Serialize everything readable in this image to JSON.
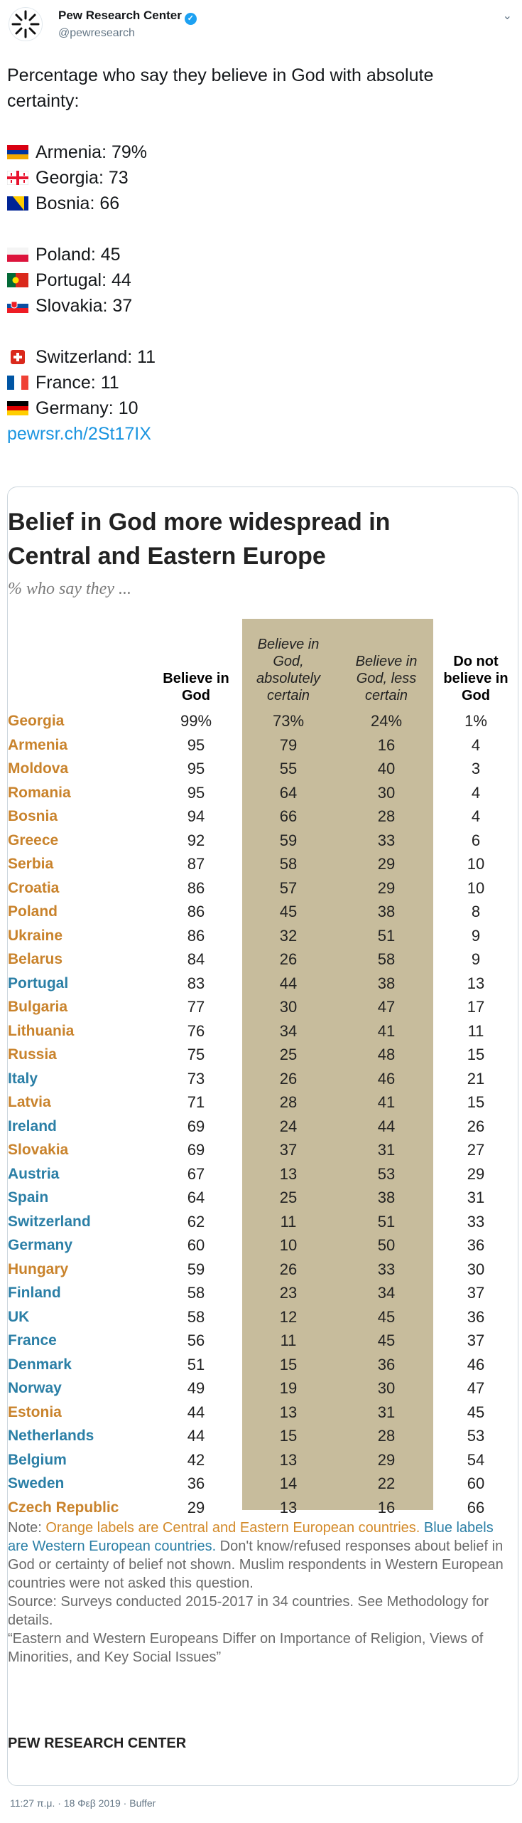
{
  "header": {
    "account_name": "Pew Research Center",
    "handle": "@pewresearch",
    "verified_icon": "verified-badge-icon",
    "menu_icon": "chevron-down-icon"
  },
  "tweet": {
    "intro": "Percentage who say they believe in God with absolute certainty:",
    "group1": [
      "Armenia: 79%",
      "Georgia: 73",
      "Bosnia: 66"
    ],
    "group2": [
      "Poland: 45",
      "Portugal: 44",
      "Slovakia: 37"
    ],
    "group3": [
      "Switzerland: 11",
      "France: 11",
      "Germany: 10"
    ],
    "link": "pewrsr.ch/2St17IX"
  },
  "card": {
    "title_line1": "Belief in God more widespread in",
    "title_line2": "Central and Eastern Europe",
    "subtitle": "% who say they ...",
    "col_headers": [
      "Believe in God",
      "Believe in God, absolutely certain",
      "Believe in God, less certain",
      "Do not believe in God"
    ],
    "shade_color": "#c7bc9c",
    "east_color": "#c9832c",
    "west_color": "#2b7fa6"
  },
  "chart_data": {
    "type": "table",
    "title": "Belief in God more widespread in Central and Eastern Europe",
    "subtitle": "% who say they ...",
    "columns": [
      "Believe in God",
      "Believe in God, absolutely certain",
      "Believe in God, less certain",
      "Do not believe in God"
    ],
    "rows": [
      {
        "country": "Georgia",
        "region": "east",
        "values": [
          "99%",
          "73%",
          "24%",
          "1%"
        ]
      },
      {
        "country": "Armenia",
        "region": "east",
        "values": [
          "95",
          "79",
          "16",
          "4"
        ]
      },
      {
        "country": "Moldova",
        "region": "east",
        "values": [
          "95",
          "55",
          "40",
          "3"
        ]
      },
      {
        "country": "Romania",
        "region": "east",
        "values": [
          "95",
          "64",
          "30",
          "4"
        ]
      },
      {
        "country": "Bosnia",
        "region": "east",
        "values": [
          "94",
          "66",
          "28",
          "4"
        ]
      },
      {
        "country": "Greece",
        "region": "east",
        "values": [
          "92",
          "59",
          "33",
          "6"
        ]
      },
      {
        "country": "Serbia",
        "region": "east",
        "values": [
          "87",
          "58",
          "29",
          "10"
        ]
      },
      {
        "country": "Croatia",
        "region": "east",
        "values": [
          "86",
          "57",
          "29",
          "10"
        ]
      },
      {
        "country": "Poland",
        "region": "east",
        "values": [
          "86",
          "45",
          "38",
          "8"
        ]
      },
      {
        "country": "Ukraine",
        "region": "east",
        "values": [
          "86",
          "32",
          "51",
          "9"
        ]
      },
      {
        "country": "Belarus",
        "region": "east",
        "values": [
          "84",
          "26",
          "58",
          "9"
        ]
      },
      {
        "country": "Portugal",
        "region": "west",
        "values": [
          "83",
          "44",
          "38",
          "13"
        ]
      },
      {
        "country": "Bulgaria",
        "region": "east",
        "values": [
          "77",
          "30",
          "47",
          "17"
        ]
      },
      {
        "country": "Lithuania",
        "region": "east",
        "values": [
          "76",
          "34",
          "41",
          "11"
        ]
      },
      {
        "country": "Russia",
        "region": "east",
        "values": [
          "75",
          "25",
          "48",
          "15"
        ]
      },
      {
        "country": "Italy",
        "region": "west",
        "values": [
          "73",
          "26",
          "46",
          "21"
        ]
      },
      {
        "country": "Latvia",
        "region": "east",
        "values": [
          "71",
          "28",
          "41",
          "15"
        ]
      },
      {
        "country": "Ireland",
        "region": "west",
        "values": [
          "69",
          "24",
          "44",
          "26"
        ]
      },
      {
        "country": "Slovakia",
        "region": "east",
        "values": [
          "69",
          "37",
          "31",
          "27"
        ]
      },
      {
        "country": "Austria",
        "region": "west",
        "values": [
          "67",
          "13",
          "53",
          "29"
        ]
      },
      {
        "country": "Spain",
        "region": "west",
        "values": [
          "64",
          "25",
          "38",
          "31"
        ]
      },
      {
        "country": "Switzerland",
        "region": "west",
        "values": [
          "62",
          "11",
          "51",
          "33"
        ]
      },
      {
        "country": "Germany",
        "region": "west",
        "values": [
          "60",
          "10",
          "50",
          "36"
        ]
      },
      {
        "country": "Hungary",
        "region": "east",
        "values": [
          "59",
          "26",
          "33",
          "30"
        ]
      },
      {
        "country": "Finland",
        "region": "west",
        "values": [
          "58",
          "23",
          "34",
          "37"
        ]
      },
      {
        "country": "UK",
        "region": "west",
        "values": [
          "58",
          "12",
          "45",
          "36"
        ]
      },
      {
        "country": "France",
        "region": "west",
        "values": [
          "56",
          "11",
          "45",
          "37"
        ]
      },
      {
        "country": "Denmark",
        "region": "west",
        "values": [
          "51",
          "15",
          "36",
          "46"
        ]
      },
      {
        "country": "Norway",
        "region": "west",
        "values": [
          "49",
          "19",
          "30",
          "47"
        ]
      },
      {
        "country": "Estonia",
        "region": "east",
        "values": [
          "44",
          "13",
          "31",
          "45"
        ]
      },
      {
        "country": "Netherlands",
        "region": "west",
        "values": [
          "44",
          "15",
          "28",
          "53"
        ]
      },
      {
        "country": "Belgium",
        "region": "west",
        "values": [
          "42",
          "13",
          "29",
          "54"
        ]
      },
      {
        "country": "Sweden",
        "region": "west",
        "values": [
          "36",
          "14",
          "22",
          "60"
        ]
      },
      {
        "country": "Czech Republic",
        "region": "east",
        "values": [
          "29",
          "13",
          "16",
          "66"
        ]
      }
    ]
  },
  "notes": {
    "note_prefix": "Note: ",
    "note_orange": "Orange labels are Central and Eastern European countries.",
    "note_blue": "Blue labels are Western European countries.",
    "note_rest": " Don't know/refused responses about belief in God or certainty of belief not shown. Muslim respondents in Western European countries were not asked this question.",
    "source": "Source: Surveys conducted 2015-2017 in 34 countries. See Methodology for details.",
    "report": "“Eastern and Western Europeans Differ on Importance of Religion, Views of Minorities, and Key Social Issues”",
    "brand": "PEW RESEARCH CENTER"
  },
  "footer": {
    "timestamp": "11:27 π.μ. · 18 Φεβ 2019 · Buffer"
  }
}
